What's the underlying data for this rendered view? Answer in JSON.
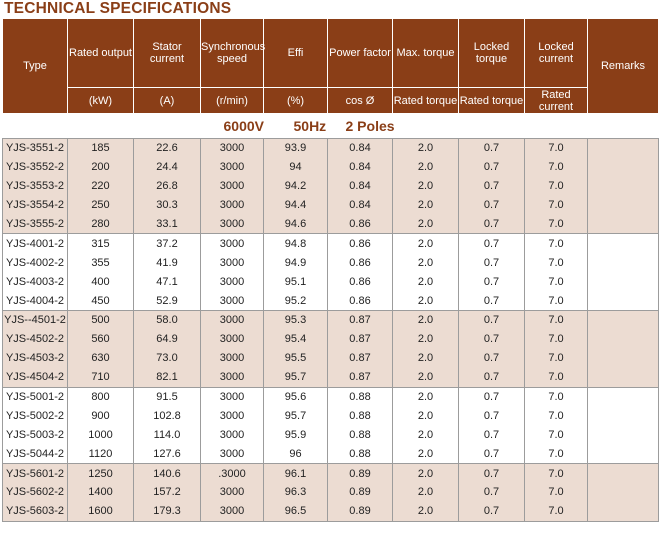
{
  "title": "TECHNICAL SPECIFICATIONS",
  "colors": {
    "header_bg": "#8a3e17",
    "title": "#8a3e17",
    "shade_row": "#ecdcd2"
  },
  "header": {
    "type": "Type",
    "rated_output": "Rated output",
    "rated_output_unit": "(kW)",
    "stator_current": "Stator current",
    "stator_current_unit": "(A)",
    "sync_speed": "Synchronous speed",
    "sync_speed_unit": "(r/min)",
    "effi": "Effi",
    "effi_unit": "(%)",
    "power_factor": "Power factor",
    "power_factor_unit": "cos Ø",
    "max_torque": "Max. torque",
    "max_torque_unit": "Rated torque",
    "locked_torque": "Locked torque",
    "locked_torque_unit": "Rated torque",
    "locked_current": "Locked current",
    "locked_current_unit": "Rated current",
    "remarks": "Remarks"
  },
  "subheader": {
    "voltage": "6000V",
    "frequency": "50Hz",
    "poles": "2 Poles"
  },
  "rows": [
    [
      "YJS-3551-2",
      "185",
      "22.6",
      "3000",
      "93.9",
      "0.84",
      "2.0",
      "0.7",
      "7.0",
      ""
    ],
    [
      "YJS-3552-2",
      "200",
      "24.4",
      "3000",
      "94",
      "0.84",
      "2.0",
      "0.7",
      "7.0",
      ""
    ],
    [
      "YJS-3553-2",
      "220",
      "26.8",
      "3000",
      "94.2",
      "0.84",
      "2.0",
      "0.7",
      "7.0",
      ""
    ],
    [
      "YJS-3554-2",
      "250",
      "30.3",
      "3000",
      "94.4",
      "0.84",
      "2.0",
      "0.7",
      "7.0",
      ""
    ],
    [
      "YJS-3555-2",
      "280",
      "33.1",
      "3000",
      "94.6",
      "0.86",
      "2.0",
      "0.7",
      "7.0",
      ""
    ],
    [
      "YJS-4001-2",
      "315",
      "37.2",
      "3000",
      "94.8",
      "0.86",
      "2.0",
      "0.7",
      "7.0",
      ""
    ],
    [
      "YJS-4002-2",
      "355",
      "41.9",
      "3000",
      "94.9",
      "0.86",
      "2.0",
      "0.7",
      "7.0",
      ""
    ],
    [
      "YJS-4003-2",
      "400",
      "47.1",
      "3000",
      "95.1",
      "0.86",
      "2.0",
      "0.7",
      "7.0",
      ""
    ],
    [
      "YJS-4004-2",
      "450",
      "52.9",
      "3000",
      "95.2",
      "0.86",
      "2.0",
      "0.7",
      "7.0",
      ""
    ],
    [
      "YJS--4501-2",
      "500",
      "58.0",
      "3000",
      "95.3",
      "0.87",
      "2.0",
      "0.7",
      "7.0",
      ""
    ],
    [
      "YJS-4502-2",
      "560",
      "64.9",
      "3000",
      "95.4",
      "0.87",
      "2.0",
      "0.7",
      "7.0",
      ""
    ],
    [
      "YJS-4503-2",
      "630",
      "73.0",
      "3000",
      "95.5",
      "0.87",
      "2.0",
      "0.7",
      "7.0",
      ""
    ],
    [
      "YJS-4504-2",
      "710",
      "82.1",
      "3000",
      "95.7",
      "0.87",
      "2.0",
      "0.7",
      "7.0",
      ""
    ],
    [
      "YJS-5001-2",
      "800",
      "91.5",
      "3000",
      "95.6",
      "0.88",
      "2.0",
      "0.7",
      "7.0",
      ""
    ],
    [
      "YJS-5002-2",
      "900",
      "102.8",
      "3000",
      "95.7",
      "0.88",
      "2.0",
      "0.7",
      "7.0",
      ""
    ],
    [
      "YJS-5003-2",
      "1000",
      "114.0",
      "3000",
      "95.9",
      "0.88",
      "2.0",
      "0.7",
      "7.0",
      ""
    ],
    [
      "YJS-5044-2",
      "1120",
      "127.6",
      "3000",
      "96",
      "0.88",
      "2.0",
      "0.7",
      "7.0",
      ""
    ],
    [
      "YJS-5601-2",
      "1250",
      "140.6",
      ".3000",
      "96.1",
      "0.89",
      "2.0",
      "0.7",
      "7.0",
      ""
    ],
    [
      "YJS-5602-2",
      "1400",
      "157.2",
      "3000",
      "96.3",
      "0.89",
      "2.0",
      "0.7",
      "7.0",
      ""
    ],
    [
      "YJS-5603-2",
      "1600",
      "179.3",
      "3000",
      "96.5",
      "0.89",
      "2.0",
      "0.7",
      "7.0",
      ""
    ]
  ]
}
